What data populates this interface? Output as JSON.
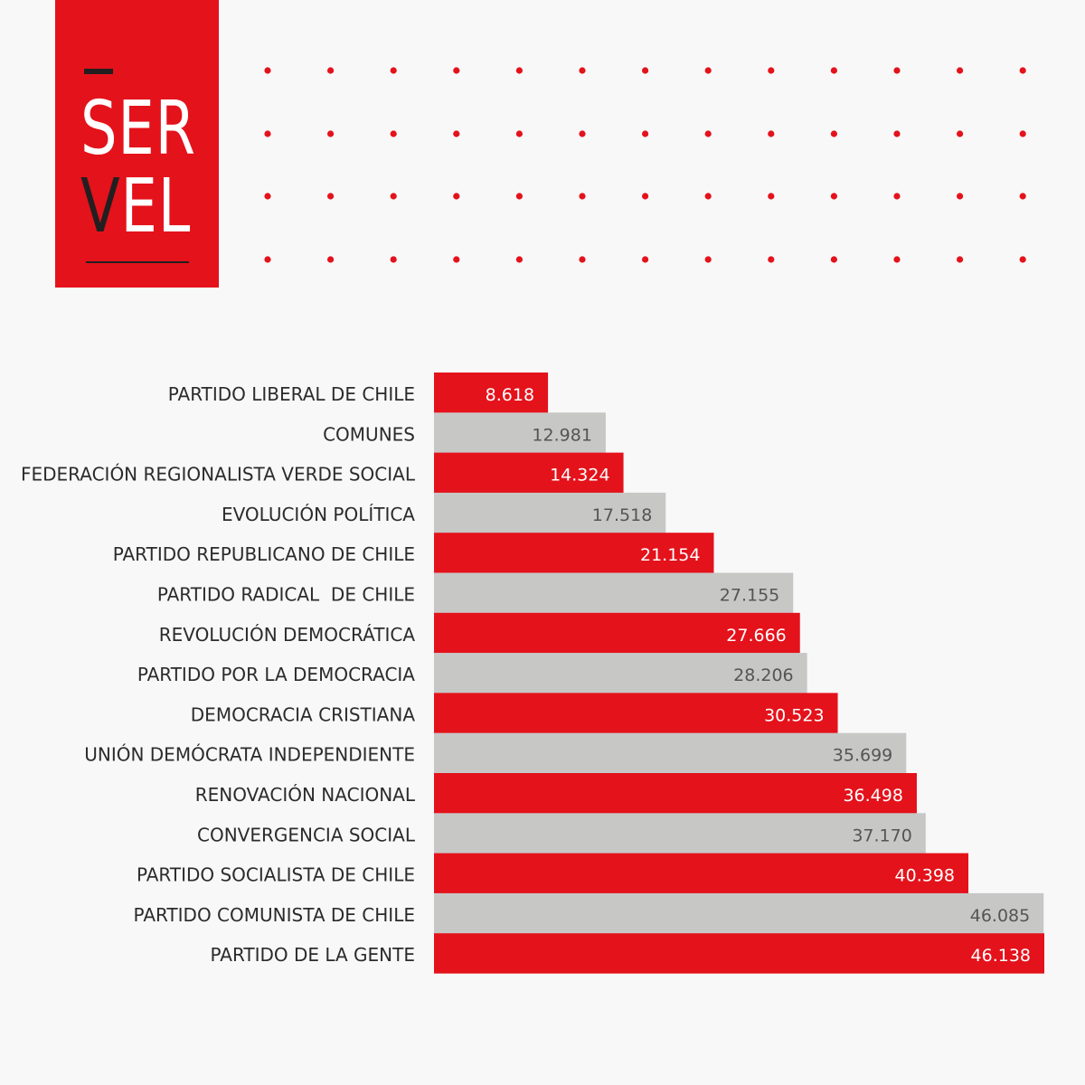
{
  "logo": {
    "line1": "SER",
    "line2_v": "V",
    "line2_rest": "EL",
    "color": "#e4121b",
    "accent": "#231f20"
  },
  "colors": {
    "red": "#e4121b",
    "gray": "#c7c7c6",
    "red_text": "#ffffff",
    "gray_text": "#555555"
  },
  "chart_data": {
    "type": "bar",
    "orientation": "horizontal",
    "categories": [
      "PARTIDO LIBERAL DE CHILE",
      "COMUNES",
      "FEDERACIÓN REGIONALISTA VERDE SOCIAL",
      "EVOLUCIÓN POLÍTICA",
      "PARTIDO REPUBLICANO DE CHILE",
      "PARTIDO RADICAL  DE CHILE",
      "REVOLUCIÓN DEMOCRÁTICA",
      "PARTIDO POR LA DEMOCRACIA",
      "DEMOCRACIA CRISTIANA",
      "UNIÓN DEMÓCRATA INDEPENDIENTE",
      "RENOVACIÓN NACIONAL",
      "CONVERGENCIA SOCIAL",
      "PARTIDO SOCIALISTA DE CHILE",
      "PARTIDO COMUNISTA DE CHILE",
      "PARTIDO DE LA GENTE"
    ],
    "values": [
      8618,
      12981,
      14324,
      17518,
      21154,
      27155,
      27666,
      28206,
      30523,
      35699,
      36498,
      37170,
      40398,
      46085,
      46138
    ],
    "value_labels": [
      "8.618",
      "12.981",
      "14.324",
      "17.518",
      "21.154",
      "27.155",
      "27.666",
      "28.206",
      "30.523",
      "35.699",
      "36.498",
      "37.170",
      "40.398",
      "46.085",
      "46.138"
    ],
    "bar_colors": [
      "red",
      "gray",
      "red",
      "gray",
      "red",
      "gray",
      "red",
      "gray",
      "red",
      "gray",
      "red",
      "gray",
      "red",
      "gray",
      "red"
    ],
    "xlim": [
      0,
      46138
    ],
    "grid": false,
    "legend": "none"
  }
}
